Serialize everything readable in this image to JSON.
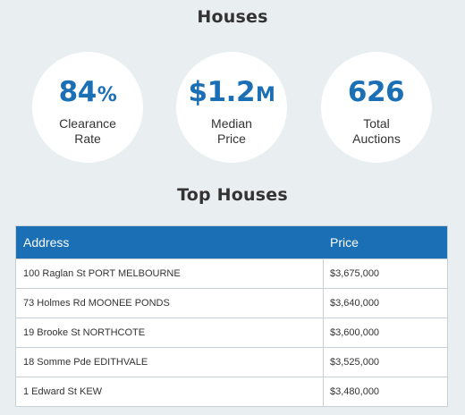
{
  "houses_title": "Houses",
  "stats": {
    "clearance": {
      "value": "84",
      "unit": "%",
      "label_line1": "Clearance",
      "label_line2": "Rate"
    },
    "median": {
      "value": "$1.2",
      "unit": "M",
      "label_line1": "Median",
      "label_line2": "Price"
    },
    "auctions": {
      "value": "626",
      "unit": "",
      "label_line1": "Total",
      "label_line2": "Auctions"
    }
  },
  "top_houses_title": "Top Houses",
  "table": {
    "headers": {
      "address": "Address",
      "price": "Price"
    },
    "rows": [
      {
        "address": "100 Raglan St PORT MELBOURNE",
        "price": "$3,675,000"
      },
      {
        "address": "73 Holmes Rd MOONEE PONDS",
        "price": "$3,640,000"
      },
      {
        "address": "19 Brooke St NORTHCOTE",
        "price": "$3,600,000"
      },
      {
        "address": "18 Somme Pde EDITHVALE",
        "price": "$3,525,000"
      },
      {
        "address": "1 Edward St KEW",
        "price": "$3,480,000"
      }
    ]
  },
  "colors": {
    "accent": "#1a6fb5",
    "background": "#e9eef1"
  }
}
